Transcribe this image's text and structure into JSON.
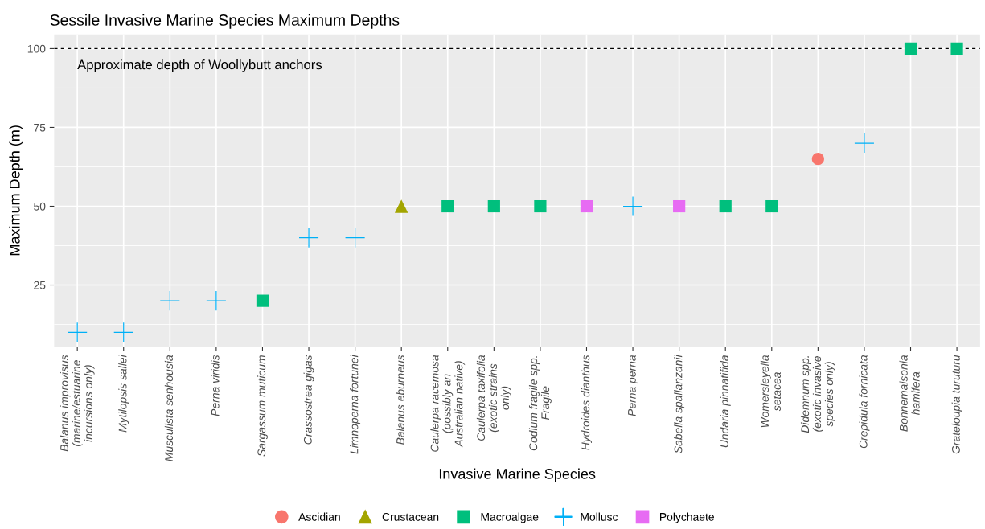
{
  "chart_data": {
    "type": "scatter",
    "title": "Sessile Invasive Marine Species Maximum Depths",
    "xlabel": "Invasive Marine Species",
    "ylabel": "Maximum Depth (m)",
    "categories": [
      "Balanus improvisus\n(marine/estuarine\nincursions only)",
      "Mytilopsis sallei",
      "Musculista senhousia",
      "Perna viridis",
      "Sargassum muticum",
      "Crassostrea gigas",
      "Limnoperna fortunei",
      "Balanus eburneus",
      "Caulerpa racemosa\n(possibly an\nAustralian native)",
      "Caulerpa taxifolia\n(exotic strains\nonly)",
      "Codium fragile spp.\nFragile",
      "Hydroides dianthus",
      "Perna perna",
      "Sabella spallanzanii",
      "Undaria pinnatifida",
      "Womersleyella\nsetacea",
      "Didemnum spp.\n(exotic invasive\nspecies only)",
      "Crepidula fornicata",
      "Bonnemaisonia\nhamifera",
      "Grateloupia turuturu"
    ],
    "series": [
      {
        "name": "Ascidian",
        "color": "#f8766d",
        "marker": "circle",
        "values": [
          null,
          null,
          null,
          null,
          null,
          null,
          null,
          null,
          null,
          null,
          null,
          null,
          null,
          null,
          null,
          null,
          65,
          null,
          null,
          null
        ]
      },
      {
        "name": "Crustacean",
        "color": "#a3a500",
        "marker": "triangle",
        "values": [
          null,
          null,
          null,
          null,
          null,
          null,
          null,
          50,
          null,
          null,
          null,
          null,
          null,
          null,
          null,
          null,
          null,
          null,
          null,
          null
        ]
      },
      {
        "name": "Macroalgae",
        "color": "#00bf7d",
        "marker": "square",
        "values": [
          null,
          null,
          null,
          null,
          20,
          null,
          null,
          null,
          50,
          50,
          50,
          null,
          null,
          null,
          50,
          50,
          null,
          null,
          100,
          100
        ]
      },
      {
        "name": "Mollusc",
        "color": "#00b0f6",
        "marker": "cross",
        "values": [
          10,
          10,
          20,
          20,
          null,
          40,
          40,
          null,
          null,
          null,
          null,
          null,
          50,
          null,
          null,
          null,
          null,
          70,
          null,
          null
        ]
      },
      {
        "name": "Polychaete",
        "color": "#e76bf3",
        "marker": "square",
        "values": [
          null,
          null,
          null,
          null,
          null,
          null,
          null,
          null,
          null,
          null,
          null,
          50,
          null,
          50,
          null,
          null,
          null,
          null,
          null,
          null
        ]
      }
    ],
    "ylim": [
      5.5,
      104.5
    ],
    "yticks": [
      25,
      50,
      75,
      100
    ],
    "grid": true,
    "legend": "bottom",
    "ref_lines": [
      {
        "axis": "y",
        "value": 100,
        "label": "Approximate depth of Woollybutt anchors",
        "color": "#000000",
        "line_style": "dashed"
      }
    ]
  }
}
